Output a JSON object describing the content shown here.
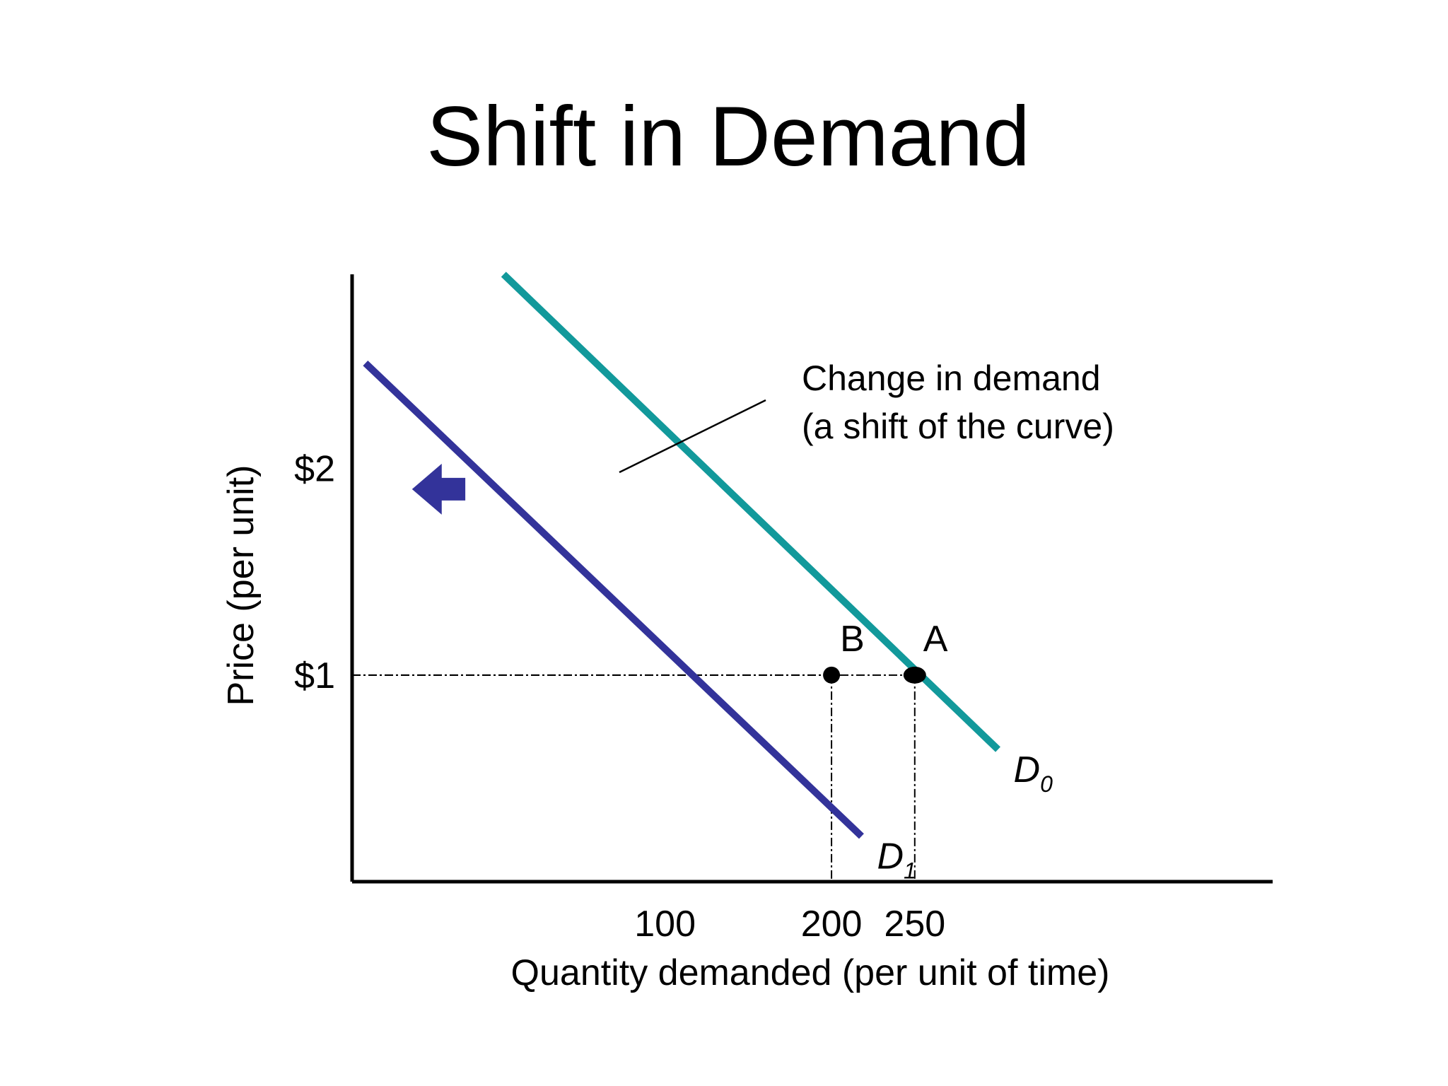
{
  "chart_data": {
    "type": "line",
    "title": "Shift in Demand",
    "xlabel": "Quantity demanded (per unit of time)",
    "ylabel": "Price (per unit)",
    "x_ticks": [
      {
        "value": 100,
        "label": "100"
      },
      {
        "value": 200,
        "label": "200"
      },
      {
        "value": 250,
        "label": "250"
      }
    ],
    "y_ticks": [
      {
        "value": 1,
        "label": "$1"
      },
      {
        "value": 2,
        "label": "$2"
      }
    ],
    "xlim": [
      -88,
      465
    ],
    "ylim": [
      0,
      2.94
    ],
    "grid": false,
    "legend": "none",
    "series": [
      {
        "name": "D",
        "subscript": "0",
        "color": "#12999b",
        "points": [
          [
            3,
            2.94
          ],
          [
            300,
            0.64
          ]
        ]
      },
      {
        "name": "D",
        "subscript": "1",
        "color": "#33339a",
        "points": [
          [
            -80,
            2.51
          ],
          [
            218,
            0.22
          ]
        ]
      }
    ],
    "points": [
      {
        "label": "A",
        "x": 250,
        "y": 1
      },
      {
        "label": "B",
        "x": 200,
        "y": 1
      }
    ],
    "annotation": {
      "lines": [
        "Change in demand",
        "(a shift of the curve)"
      ],
      "arrow_color": "#33339a",
      "arrow_from": [
        -20,
        1.9
      ],
      "arrow_to": [
        -52,
        1.9
      ]
    }
  }
}
